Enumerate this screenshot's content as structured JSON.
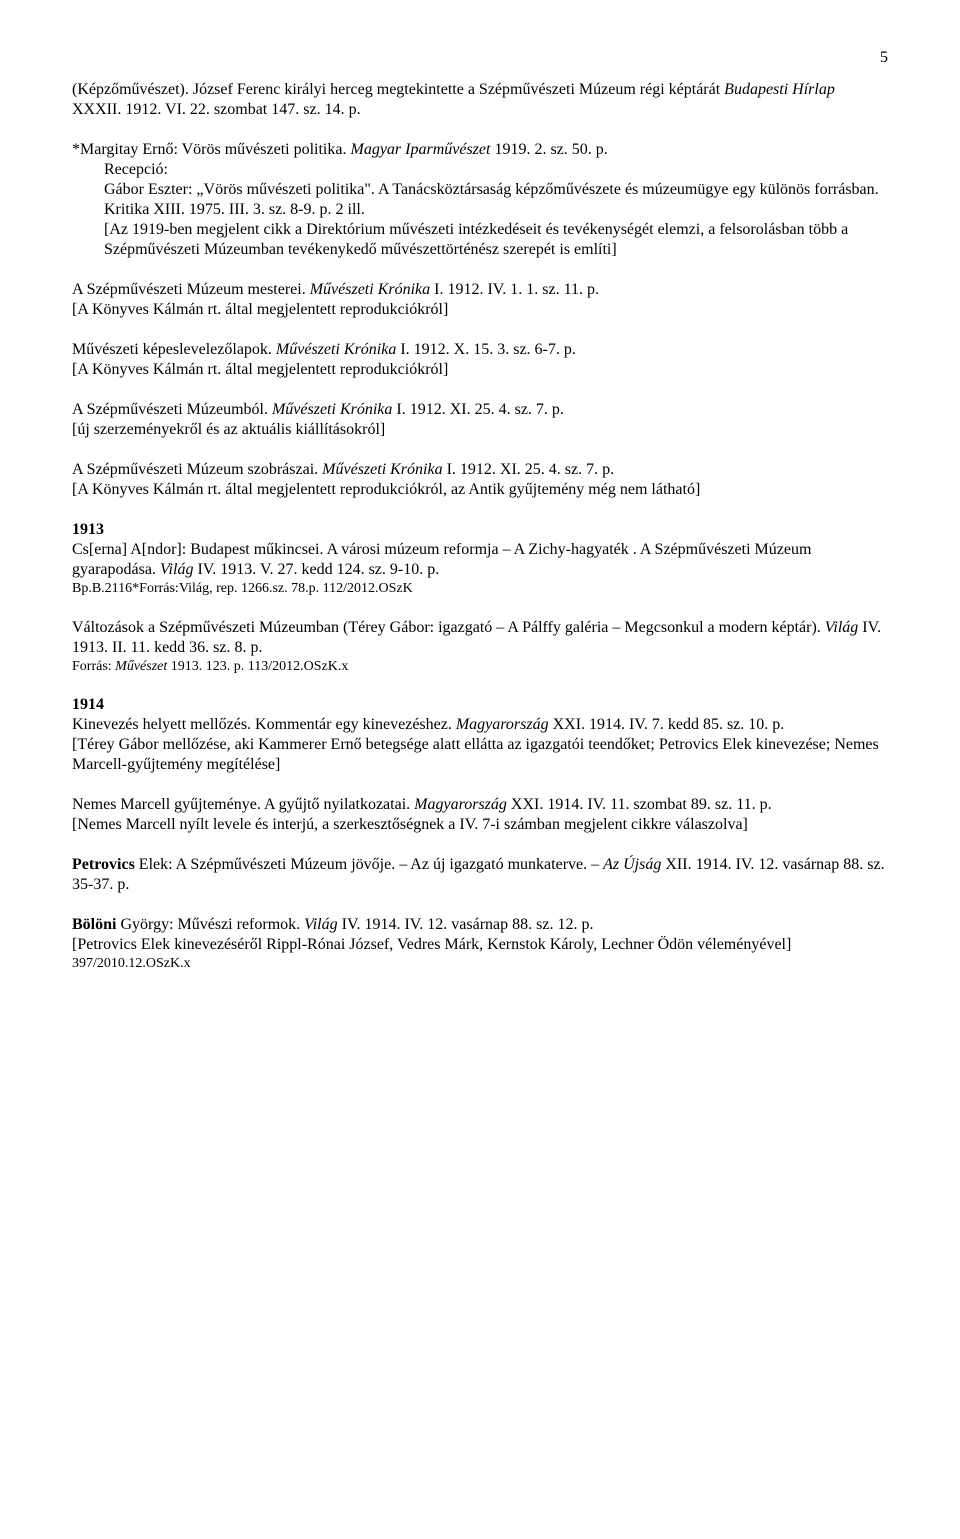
{
  "page_number": "5",
  "entries": [
    {
      "lines": [
        {
          "segs": [
            {
              "t": "(Képzőművészet). József Ferenc királyi herceg megtekintette a Szépművészeti Múzeum régi képtárát "
            },
            {
              "t": "Budapesti Hírlap",
              "i": true
            },
            {
              "t": " XXXII. 1912. VI. 22. szombat 147. sz. 14. p."
            }
          ]
        }
      ]
    },
    {
      "lines": [
        {
          "segs": [
            {
              "t": "*Margitay Ernő: Vörös művészeti politika. "
            },
            {
              "t": "Magyar Iparművészet",
              "i": true
            },
            {
              "t": " 1919. 2. sz. 50. p."
            }
          ]
        },
        {
          "indent": true,
          "segs": [
            {
              "t": "Recepció:"
            }
          ]
        },
        {
          "indent": true,
          "segs": [
            {
              "t": "Gábor Eszter: „Vörös művészeti politika\". A Tanácsköztársaság képzőművészete és múzeumügye egy különös forrásban. Kritika XIII. 1975. III. 3. sz. 8-9. p. 2 ill."
            }
          ]
        },
        {
          "indent": true,
          "segs": [
            {
              "t": "[Az 1919-ben megjelent cikk a Direktórium művészeti intézkedéseit és tevékenységét elemzi, a felsorolásban több a Szépművészeti Múzeumban tevékenykedő művészettörténész szerepét is említi]"
            }
          ]
        }
      ]
    },
    {
      "lines": [
        {
          "segs": [
            {
              "t": "A Szépművészeti Múzeum mesterei. "
            },
            {
              "t": "Művészeti Krónika",
              "i": true
            },
            {
              "t": " I. 1912. IV. 1. 1. sz. 11. p."
            }
          ]
        },
        {
          "segs": [
            {
              "t": "[A Könyves Kálmán rt. által megjelentett reprodukciókról]"
            }
          ]
        }
      ]
    },
    {
      "lines": [
        {
          "segs": [
            {
              "t": "Művészeti képeslevelezőlapok. "
            },
            {
              "t": "Művészeti Krónika",
              "i": true
            },
            {
              "t": " I. 1912. X. 15. 3. sz. 6-7. p."
            }
          ]
        },
        {
          "segs": [
            {
              "t": "[A Könyves Kálmán rt. által megjelentett reprodukciókról]"
            }
          ]
        }
      ]
    },
    {
      "lines": [
        {
          "segs": [
            {
              "t": "A Szépművészeti Múzeumból. "
            },
            {
              "t": "Művészeti Krónika",
              "i": true
            },
            {
              "t": " I. 1912. XI. 25. 4. sz. 7. p."
            }
          ]
        },
        {
          "segs": [
            {
              "t": "[új szerzeményekről és az aktuális kiállításokról]"
            }
          ]
        }
      ]
    },
    {
      "lines": [
        {
          "segs": [
            {
              "t": "A Szépművészeti Múzeum szobrászai. "
            },
            {
              "t": "Művészeti Krónika",
              "i": true
            },
            {
              "t": " I. 1912. XI. 25. 4. sz. 7. p."
            }
          ]
        },
        {
          "segs": [
            {
              "t": "[A Könyves Kálmán rt. által megjelentett reprodukciókról, az Antik gyűjtemény még nem látható]"
            }
          ]
        }
      ]
    },
    {
      "year": "1913",
      "lines": [
        {
          "segs": [
            {
              "t": "Cs[erna] A[ndor]: Budapest műkincsei. A városi múzeum reformja – A Zichy-hagyaték . A Szépművészeti Múzeum gyarapodása. "
            },
            {
              "t": "Világ",
              "i": true
            },
            {
              "t": " IV. 1913. V. 27. kedd 124. sz. 9-10. p."
            }
          ]
        },
        {
          "small": true,
          "segs": [
            {
              "t": "Bp.B.2116*Forrás:Világ, rep. 1266.sz. 78.p. 112/2012.OSzK"
            }
          ]
        }
      ]
    },
    {
      "lines": [
        {
          "segs": [
            {
              "t": "Változások a Szépművészeti Múzeumban (Térey Gábor: igazgató – A Pálffy galéria – Megcsonkul a modern képtár). "
            },
            {
              "t": "Világ",
              "i": true
            },
            {
              "t": " IV. 1913. II. 11. kedd 36. sz. 8. p."
            }
          ]
        },
        {
          "small": true,
          "segs": [
            {
              "t": "Forrás: "
            },
            {
              "t": "Művészet",
              "i": true
            },
            {
              "t": " 1913. 123. p. 113/2012.OSzK.x"
            }
          ]
        }
      ]
    },
    {
      "year": "1914",
      "lines": [
        {
          "segs": [
            {
              "t": "Kinevezés helyett mellőzés. Kommentár egy kinevezéshez. "
            },
            {
              "t": "Magyarország",
              "i": true
            },
            {
              "t": " XXI. 1914. IV. 7. kedd 85. sz. 10. p."
            }
          ]
        },
        {
          "segs": [
            {
              "t": "[Térey Gábor mellőzése, aki Kammerer Ernő betegsége alatt ellátta az igazgatói teendőket; Petrovics Elek kinevezése; Nemes Marcell-gyűjtemény megítélése]"
            }
          ]
        }
      ]
    },
    {
      "lines": [
        {
          "segs": [
            {
              "t": "Nemes Marcell gyűjteménye. A gyűjtő nyilatkozatai. "
            },
            {
              "t": "Magyarország",
              "i": true
            },
            {
              "t": " XXI. 1914. IV. 11. szombat 89. sz. 11. p."
            }
          ]
        },
        {
          "segs": [
            {
              "t": "[Nemes Marcell nyílt levele és interjú, a szerkesztőségnek a IV. 7-i számban megjelent cikkre válaszolva]"
            }
          ]
        }
      ]
    },
    {
      "lines": [
        {
          "segs": [
            {
              "t": "Petrovics",
              "b": true
            },
            {
              "t": " Elek: A Szépművészeti Múzeum jövője. – Az új igazgató munkaterve. – "
            },
            {
              "t": "Az Újság",
              "i": true
            },
            {
              "t": " XII. 1914. IV. 12. vasárnap 88. sz. 35-37. p."
            }
          ]
        }
      ]
    },
    {
      "lines": [
        {
          "segs": [
            {
              "t": "Bölöni",
              "b": true
            },
            {
              "t": " György: Művészi reformok. "
            },
            {
              "t": "Világ",
              "i": true
            },
            {
              "t": " IV. 1914. IV. 12. vasárnap 88. sz. 12. p."
            }
          ]
        },
        {
          "segs": [
            {
              "t": "[Petrovics Elek kinevezéséről Rippl-Rónai József, Vedres Márk, Kernstok Károly, Lechner Ödön véleményével]"
            }
          ]
        },
        {
          "small": true,
          "segs": [
            {
              "t": "397/2010.12.OSzK.x"
            }
          ]
        }
      ]
    }
  ]
}
